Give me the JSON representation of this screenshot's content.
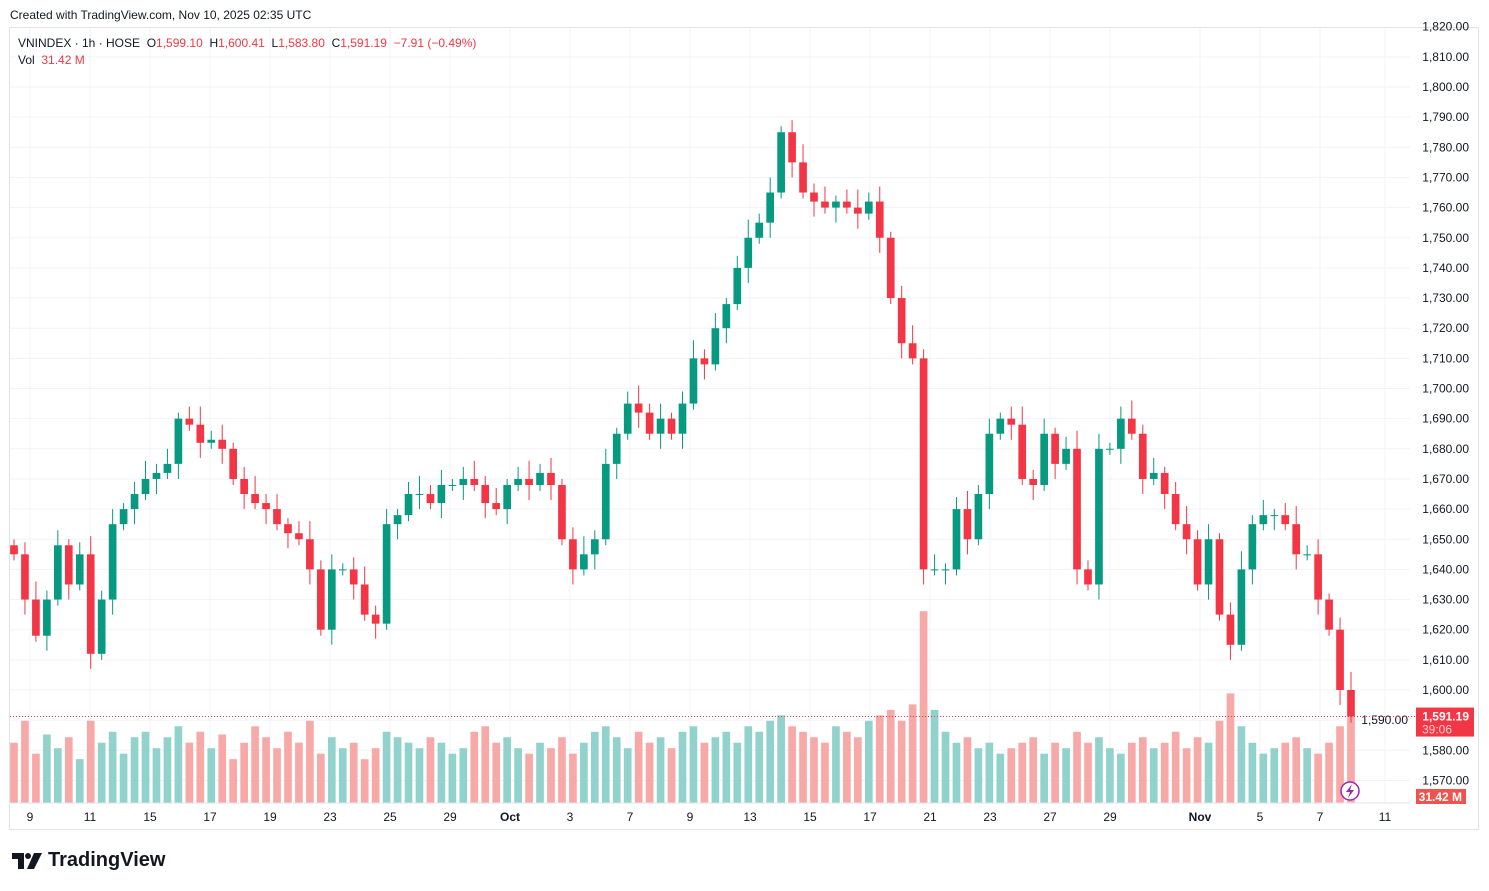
{
  "credit": "Created with TradingView.com, Nov 10, 2025 02:35 UTC",
  "legend": {
    "symbol": "VNINDEX · 1h · HOSE",
    "o_label": "O",
    "o": "1,599.10",
    "h_label": "H",
    "h": "1,600.41",
    "l_label": "L",
    "l": "1,583.80",
    "c_label": "C",
    "c": "1,591.19",
    "change": "−7.91 (−0.49%)",
    "vol_label": "Vol",
    "vol": "31.42 M"
  },
  "price_tag": {
    "price": "1,591.19",
    "countdown": "39:06",
    "volume": "31.42 M"
  },
  "brand": "TradingView",
  "colors": {
    "up": "#089981",
    "down": "#f23645",
    "vol_up": "#92d2cc",
    "vol_down": "#f7a9a7",
    "grid": "#f0f3fa"
  },
  "chart_data": {
    "type": "candlestick",
    "symbol": "VNINDEX",
    "interval": "1h",
    "ylim": [
      1565,
      1822
    ],
    "y_ticks": [
      "1,570.00",
      "1,580.00",
      "1,590.00",
      "1,600.00",
      "1,610.00",
      "1,620.00",
      "1,630.00",
      "1,640.00",
      "1,650.00",
      "1,660.00",
      "1,670.00",
      "1,680.00",
      "1,690.00",
      "1,700.00",
      "1,710.00",
      "1,720.00",
      "1,730.00",
      "1,740.00",
      "1,750.00",
      "1,760.00",
      "1,770.00",
      "1,780.00",
      "1,790.00",
      "1,800.00",
      "1,810.00",
      "1,820.00"
    ],
    "x_ticks": [
      "9",
      "11",
      "15",
      "17",
      "19",
      "23",
      "25",
      "29",
      "Oct",
      "3",
      "7",
      "9",
      "13",
      "15",
      "17",
      "21",
      "23",
      "27",
      "29",
      "Nov",
      "5",
      "7",
      "11"
    ],
    "closes": [
      1645,
      1630,
      1618,
      1630,
      1648,
      1635,
      1645,
      1612,
      1630,
      1655,
      1660,
      1665,
      1670,
      1672,
      1675,
      1690,
      1688,
      1682,
      1683,
      1680,
      1670,
      1665,
      1662,
      1660,
      1655,
      1652,
      1650,
      1640,
      1620,
      1640,
      1640,
      1635,
      1625,
      1622,
      1655,
      1658,
      1665,
      1665,
      1662,
      1668,
      1668,
      1670,
      1668,
      1662,
      1660,
      1668,
      1670,
      1668,
      1672,
      1668,
      1650,
      1640,
      1645,
      1650,
      1675,
      1685,
      1695,
      1692,
      1685,
      1690,
      1685,
      1695,
      1710,
      1708,
      1720,
      1728,
      1740,
      1750,
      1755,
      1765,
      1785,
      1775,
      1765,
      1762,
      1760,
      1762,
      1760,
      1758,
      1762,
      1750,
      1730,
      1715,
      1710,
      1640,
      1640,
      1640,
      1660,
      1650,
      1665,
      1685,
      1690,
      1688,
      1670,
      1668,
      1685,
      1675,
      1680,
      1640,
      1635,
      1680,
      1680,
      1690,
      1685,
      1670,
      1672,
      1665,
      1655,
      1650,
      1635,
      1650,
      1625,
      1615,
      1640,
      1655,
      1658,
      1658,
      1655,
      1645,
      1645,
      1630,
      1620,
      1600,
      1591.19
    ],
    "volumes_m": [
      22,
      30,
      18,
      25,
      20,
      24,
      16,
      30,
      22,
      26,
      18,
      24,
      26,
      20,
      24,
      28,
      22,
      26,
      20,
      25,
      16,
      22,
      28,
      24,
      20,
      26,
      22,
      30,
      18,
      24,
      20,
      22,
      16,
      20,
      26,
      24,
      22,
      20,
      24,
      22,
      18,
      20,
      26,
      28,
      22,
      24,
      20,
      18,
      22,
      20,
      24,
      18,
      22,
      26,
      28,
      24,
      20,
      26,
      22,
      24,
      20,
      26,
      28,
      22,
      24,
      26,
      22,
      28,
      26,
      30,
      32,
      28,
      26,
      24,
      22,
      28,
      26,
      24,
      30,
      32,
      34,
      30,
      36,
      70,
      34,
      26,
      22,
      24,
      20,
      22,
      18,
      20,
      22,
      24,
      18,
      22,
      20,
      26,
      22,
      24,
      20,
      18,
      22,
      24,
      20,
      22,
      26,
      20,
      24,
      22,
      30,
      40,
      28,
      22,
      18,
      20,
      22,
      24,
      20,
      18,
      22,
      28,
      31.42
    ]
  }
}
